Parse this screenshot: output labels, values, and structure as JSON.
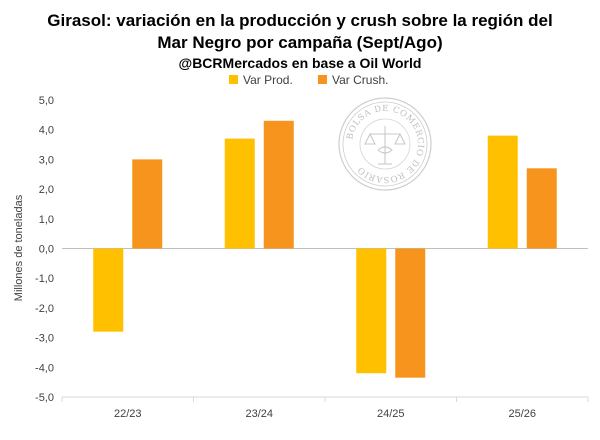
{
  "chart_data": {
    "type": "bar",
    "title_lines": [
      "Girasol: variación en la producción y crush sobre la región del",
      "Mar Negro por campaña (Sept/Ago)"
    ],
    "subtitle": "@BCRMercados en base a Oil World",
    "ylabel": "Millones de toneladas",
    "xlabel": "",
    "categories": [
      "22/23",
      "23/24",
      "24/25",
      "25/26"
    ],
    "series": [
      {
        "name": "Var Prod.",
        "color": "#FFC000",
        "values": [
          -2.8,
          3.7,
          -4.2,
          3.8
        ]
      },
      {
        "name": "Var Crush.",
        "color": "#F7941D",
        "values": [
          3.0,
          4.3,
          -4.35,
          2.7
        ]
      }
    ],
    "ylim": [
      -5,
      5
    ],
    "yticks": [
      "-5,0",
      "-4,0",
      "-3,0",
      "-2,0",
      "-1,0",
      "0,0",
      "1,0",
      "2,0",
      "3,0",
      "4,0",
      "5,0"
    ],
    "grid": false,
    "legend_position": "top-center",
    "watermark_text": "BOLSA DE COMERCIO DE ROSARIO"
  }
}
